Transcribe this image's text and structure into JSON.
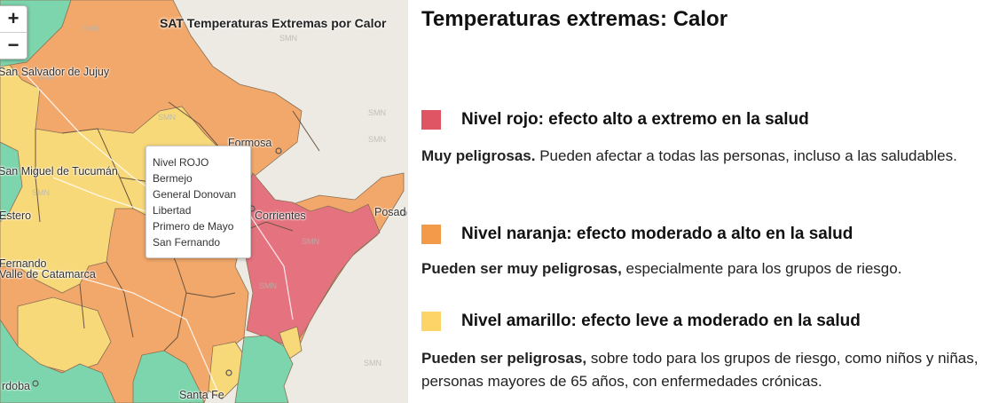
{
  "map": {
    "title": "SAT Temperaturas Extremas por Calor",
    "zoom_in_label": "+",
    "zoom_out_label": "−",
    "watermark": "SMN",
    "colors": {
      "red": "#e5737f",
      "orange": "#f2a86a",
      "yellow": "#f8d97a",
      "green": "#7dd5ad",
      "background": "#eceae2",
      "border": "#8a6f55"
    },
    "cities": [
      {
        "id": "jujuy",
        "label": "San Salvador de Jujuy"
      },
      {
        "id": "formosa",
        "label": "Formosa"
      },
      {
        "id": "tucuman",
        "label": "San Miguel de Tucumán"
      },
      {
        "id": "corrientes",
        "label": "Corrientes"
      },
      {
        "id": "posadas",
        "label": "Posad"
      },
      {
        "id": "estero",
        "label": "Estero"
      },
      {
        "id": "fernando",
        "label": "Fernando"
      },
      {
        "id": "catamarca",
        "label": "Valle de Catamarca"
      },
      {
        "id": "cordoba",
        "label": "rdoba"
      },
      {
        "id": "santafe",
        "label": "Santa Fe"
      }
    ],
    "popup": {
      "lines": [
        "Nivel ROJO",
        "Bermejo",
        "General Donovan",
        "Libertad",
        "Primero de Mayo",
        "San Fernando"
      ]
    }
  },
  "legend": {
    "title": "Temperaturas extremas: Calor",
    "levels": [
      {
        "color": "#e05563",
        "title": "Nivel rojo: efecto alto a extremo en la salud",
        "desc_bold": "Muy peligrosas.",
        "desc_rest": " Pueden afectar a todas las personas, incluso a las saludables."
      },
      {
        "color": "#f39a4a",
        "title": "Nivel naranja: efecto moderado a alto en la salud",
        "desc_bold": "Pueden ser muy peligrosas,",
        "desc_rest": " especialmente para los grupos de riesgo."
      },
      {
        "color": "#fdd467",
        "title": "Nivel amarillo: efecto leve a moderado en la salud",
        "desc_bold": "Pueden ser peligrosas,",
        "desc_rest": " sobre todo para los grupos de riesgo, como niños y niñas, personas mayores de 65 años, con enfermedades crónicas."
      }
    ]
  }
}
